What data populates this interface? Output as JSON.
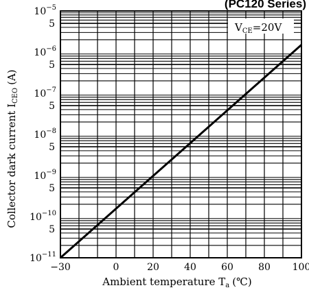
{
  "chart_data": {
    "type": "line",
    "series_title": "(PC120 Series)",
    "condition_label_main": "V",
    "condition_label_sub": "CE",
    "condition_label_rest": "=20V",
    "xlabel_main": "Ambient temperature  T",
    "xlabel_sub": "a",
    "xlabel_unit": "(℃)",
    "ylabel_main": "Collector dark current  I",
    "ylabel_sub": "CEO",
    "ylabel_unit": "(A)",
    "x_ticks": [
      -30,
      0,
      20,
      40,
      60,
      80,
      100
    ],
    "x_tick_labels": [
      "−30",
      "0",
      "20",
      "40",
      "60",
      "80",
      "100"
    ],
    "xlim": [
      -30,
      100
    ],
    "y_scale": "log",
    "ylim": [
      1e-11,
      1e-05
    ],
    "y_decade_exponents": [
      -5,
      -6,
      -7,
      -8,
      -9,
      -10,
      -11
    ],
    "y_decade_base": "10",
    "y_minor_label": "5",
    "grid": true,
    "series": [
      {
        "x": [
          -30,
          100
        ],
        "y": [
          1e-11,
          1.5e-06
        ]
      }
    ]
  }
}
